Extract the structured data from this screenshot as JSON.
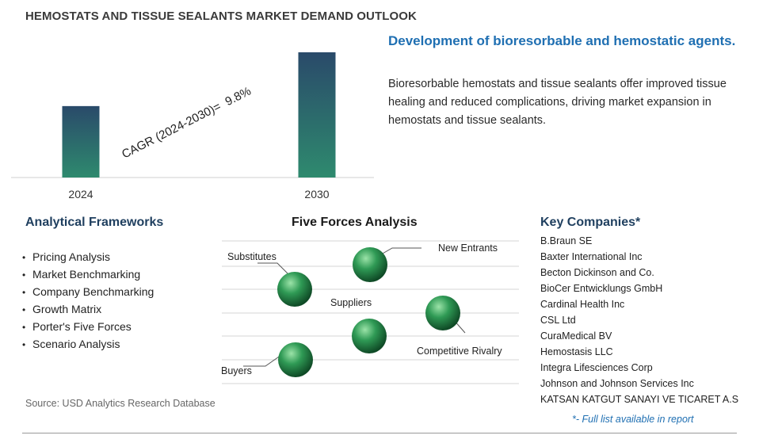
{
  "header": {
    "title": "HEMOSTATS AND TISSUE SEALANTS MARKET DEMAND OUTLOOK"
  },
  "chart_data": {
    "type": "bar",
    "categories": [
      "2024",
      "2030"
    ],
    "values": [
      1,
      1.753
    ],
    "annotation": "CAGR (2024-2030)=  9.8%",
    "grid": false,
    "colors": {
      "bar_top": "#2a4a6a",
      "bar_bottom": "#2e8a6e"
    }
  },
  "insight": {
    "headline": "Development of bioresorbable and hemostatic agents.",
    "body": "Bioresorbable hemostats and tissue sealants offer improved tissue healing and reduced complications, driving market expansion in hemostats and tissue sealants."
  },
  "frameworks": {
    "title": "Analytical Frameworks",
    "items": [
      "Pricing Analysis",
      "Market Benchmarking",
      "Company Benchmarking",
      "Growth Matrix",
      "Porter's Five Forces",
      "Scenario Analysis"
    ]
  },
  "five_forces": {
    "title": "Five Forces Analysis",
    "forces": [
      "Substitutes",
      "New Entrants",
      "Suppliers",
      "Competitive Rivalry",
      "Buyers"
    ]
  },
  "companies": {
    "title": "Key Companies*",
    "items": [
      "B.Braun SE",
      "Baxter International Inc",
      "Becton Dickinson and Co.",
      "BioCer Entwicklungs GmbH",
      "Cardinal Health Inc",
      "CSL Ltd",
      "CuraMedical BV",
      "Hemostasis LLC",
      "Integra Lifesciences Corp",
      "Johnson and Johnson Services Inc",
      "KATSAN KATGUT SANAYI VE TICARET A.S"
    ],
    "note": "*- Full list available in report"
  },
  "footer": {
    "source": "Source: USD Analytics Research Database"
  }
}
